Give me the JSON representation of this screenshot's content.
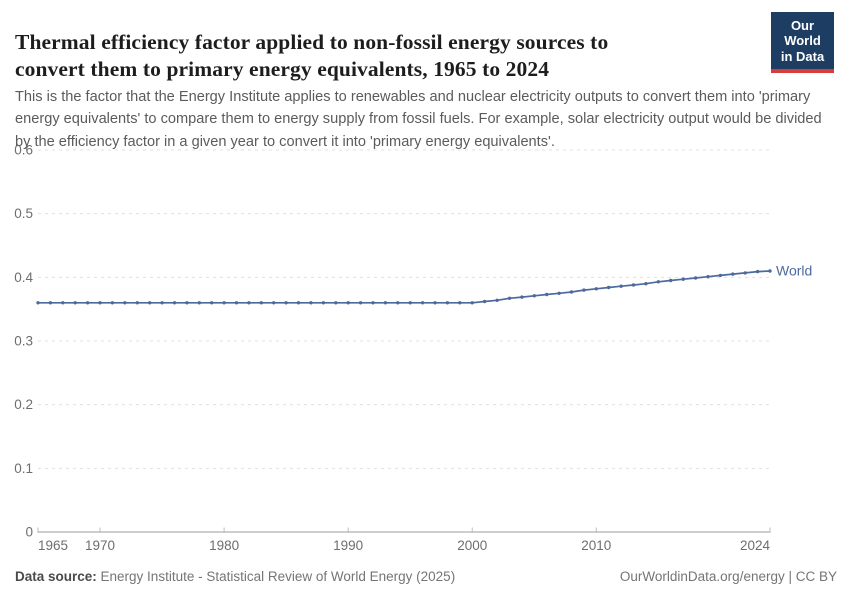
{
  "header": {
    "title_line1": "Thermal efficiency factor applied to non-fossil energy sources to",
    "title_line2": "convert them to primary energy equivalents, 1965 to 2024",
    "subtitle": "This is the factor that the Energy Institute applies to renewables and nuclear electricity outputs to convert them into 'primary energy equivalents' to compare them to energy supply from fossil fuels. For example, solar electricity output would be divided by the efficiency factor in a given year to convert it into 'primary energy equivalents'.",
    "logo": {
      "line1": "Our World",
      "line2": "in Data",
      "bg_color": "#1d3d63",
      "accent_color": "#d73c3c"
    }
  },
  "chart_data": {
    "type": "line",
    "title": "Thermal efficiency factor applied to non-fossil energy sources to convert them to primary energy equivalents, 1965 to 2024",
    "xlim": [
      1965,
      2024
    ],
    "ylim": [
      0,
      0.6
    ],
    "x_ticks": [
      1965,
      1970,
      1980,
      1990,
      2000,
      2010,
      2024
    ],
    "y_ticks": [
      0,
      0.1,
      0.2,
      0.3,
      0.4,
      0.5,
      0.6
    ],
    "grid": "horizontal-dashed",
    "legend_position": "end-of-line",
    "series": [
      {
        "name": "World",
        "color": "#4c6a9c",
        "x": [
          1965,
          1966,
          1967,
          1968,
          1969,
          1970,
          1971,
          1972,
          1973,
          1974,
          1975,
          1976,
          1977,
          1978,
          1979,
          1980,
          1981,
          1982,
          1983,
          1984,
          1985,
          1986,
          1987,
          1988,
          1989,
          1990,
          1991,
          1992,
          1993,
          1994,
          1995,
          1996,
          1997,
          1998,
          1999,
          2000,
          2001,
          2002,
          2003,
          2004,
          2005,
          2006,
          2007,
          2008,
          2009,
          2010,
          2011,
          2012,
          2013,
          2014,
          2015,
          2016,
          2017,
          2018,
          2019,
          2020,
          2021,
          2022,
          2023,
          2024
        ],
        "values": [
          0.36,
          0.36,
          0.36,
          0.36,
          0.36,
          0.36,
          0.36,
          0.36,
          0.36,
          0.36,
          0.36,
          0.36,
          0.36,
          0.36,
          0.36,
          0.36,
          0.36,
          0.36,
          0.36,
          0.36,
          0.36,
          0.36,
          0.36,
          0.36,
          0.36,
          0.36,
          0.36,
          0.36,
          0.36,
          0.36,
          0.36,
          0.36,
          0.36,
          0.36,
          0.36,
          0.36,
          0.362,
          0.364,
          0.367,
          0.369,
          0.371,
          0.373,
          0.375,
          0.377,
          0.38,
          0.382,
          0.384,
          0.386,
          0.388,
          0.39,
          0.393,
          0.395,
          0.397,
          0.399,
          0.401,
          0.403,
          0.405,
          0.407,
          0.409,
          0.41
        ]
      }
    ],
    "colors": {
      "gridline": "#e0e0e0",
      "axis_line": "#9e9e9e",
      "tick_mark": "#bdbdbd",
      "tick_label": "#6e6e6e"
    }
  },
  "footer": {
    "datasource_label": "Data source:",
    "datasource_text": " Energy Institute - Statistical Review of World Energy (2025)",
    "attribution": "OurWorldinData.org/energy | CC BY"
  }
}
